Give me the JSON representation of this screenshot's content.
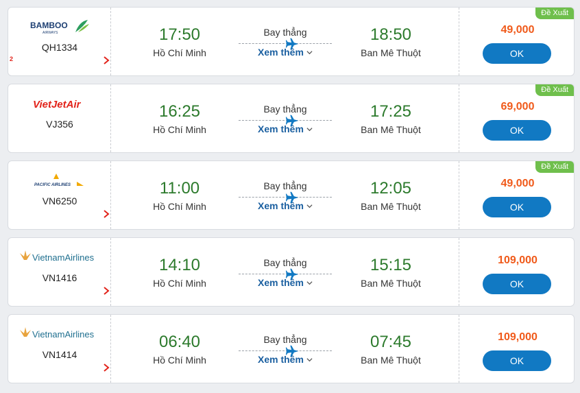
{
  "flights": [
    {
      "airline_logo": "bamboo-airways-logo",
      "code": "QH1334",
      "departure_time": "17:50",
      "departure_city": "Hồ Chí Minh",
      "route_type": "Bay thẳng",
      "more_label": "Xem thêm",
      "arrival_time": "18:50",
      "arrival_city": "Ban Mê Thuột",
      "price": "49,000",
      "ok_label": "OK",
      "badge": "Đề Xuất"
    },
    {
      "airline_logo": "vietjet-air-logo",
      "code": "VJ356",
      "departure_time": "16:25",
      "departure_city": "Hồ Chí Minh",
      "route_type": "Bay thẳng",
      "more_label": "Xem thêm",
      "arrival_time": "17:25",
      "arrival_city": "Ban Mê Thuột",
      "price": "69,000",
      "ok_label": "OK",
      "badge": "Đề Xuất"
    },
    {
      "airline_logo": "pacific-airlines-logo",
      "code": "VN6250",
      "departure_time": "11:00",
      "departure_city": "Hồ Chí Minh",
      "route_type": "Bay thẳng",
      "more_label": "Xem thêm",
      "arrival_time": "12:05",
      "arrival_city": "Ban Mê Thuột",
      "price": "49,000",
      "ok_label": "OK",
      "badge": "Đề Xuất"
    },
    {
      "airline_logo": "vietnam-airlines-logo",
      "code": "VN1416",
      "departure_time": "14:10",
      "departure_city": "Hồ Chí Minh",
      "route_type": "Bay thẳng",
      "more_label": "Xem thêm",
      "arrival_time": "15:15",
      "arrival_city": "Ban Mê Thuột",
      "price": "109,000",
      "ok_label": "OK",
      "badge": ""
    },
    {
      "airline_logo": "vietnam-airlines-logo",
      "code": "VN1414",
      "departure_time": "06:40",
      "departure_city": "Hồ Chí Minh",
      "route_type": "Bay thẳng",
      "more_label": "Xem thêm",
      "arrival_time": "07:45",
      "arrival_city": "Ban Mê Thuột",
      "price": "109,000",
      "ok_label": "OK",
      "badge": ""
    }
  ],
  "logos": {
    "bamboo": "BAMBOO",
    "bamboo_sub": "AIRWAYS",
    "vietjet": "VietJetAir",
    "pacific": "PACIFIC AIRLINES",
    "vietnam": "VietnamAirlines"
  },
  "colors": {
    "time_green": "#2c7a2c",
    "price_orange": "#f05a1a",
    "button_blue": "#1179c3",
    "badge_green": "#6fbf4c",
    "link_blue": "#1a5fa0"
  }
}
